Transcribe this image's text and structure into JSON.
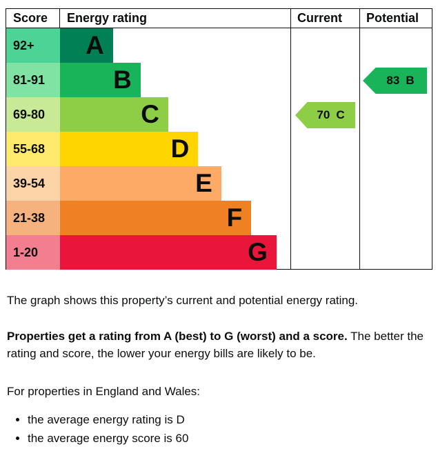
{
  "chart": {
    "headers": {
      "score": "Score",
      "rating": "Energy rating",
      "current": "Current",
      "potential": "Potential"
    },
    "bands": [
      {
        "range": "92+",
        "letter": "A",
        "color": "#008054",
        "tint": "#4dd396",
        "width": "23%"
      },
      {
        "range": "81-91",
        "letter": "B",
        "color": "#19b459",
        "tint": "#80e3a4",
        "width": "35%"
      },
      {
        "range": "69-80",
        "letter": "C",
        "color": "#8dce46",
        "tint": "#c8e995",
        "width": "47%"
      },
      {
        "range": "55-68",
        "letter": "D",
        "color": "#ffd500",
        "tint": "#ffea6e",
        "width": "60%"
      },
      {
        "range": "39-54",
        "letter": "E",
        "color": "#fcaa65",
        "tint": "#fdd4a7",
        "width": "70%"
      },
      {
        "range": "21-38",
        "letter": "F",
        "color": "#ef8023",
        "tint": "#f6b27e",
        "width": "83%"
      },
      {
        "range": "1-20",
        "letter": "G",
        "color": "#e9153b",
        "tint": "#f27e90",
        "width": "94%"
      }
    ],
    "current": {
      "value": "70",
      "letter": "C",
      "color": "#8dce46",
      "row_index": 2
    },
    "potential": {
      "value": "83",
      "letter": "B",
      "color": "#19b459",
      "row_index": 1
    }
  },
  "chart_data": {
    "type": "bar",
    "title": "Energy rating",
    "orientation": "horizontal",
    "categories": [
      "A",
      "B",
      "C",
      "D",
      "E",
      "F",
      "G"
    ],
    "score_ranges": [
      "92+",
      "81-91",
      "69-80",
      "55-68",
      "39-54",
      "21-38",
      "1-20"
    ],
    "bar_lengths_pct": [
      23,
      35,
      47,
      60,
      70,
      83,
      94
    ],
    "band_colors": [
      "#008054",
      "#19b459",
      "#8dce46",
      "#ffd500",
      "#fcaa65",
      "#ef8023",
      "#e9153b"
    ],
    "columns": [
      "Score",
      "Energy rating",
      "Current",
      "Potential"
    ],
    "markers": [
      {
        "column": "Current",
        "score": 70,
        "band": "C"
      },
      {
        "column": "Potential",
        "score": 83,
        "band": "B"
      }
    ]
  },
  "body": {
    "p1": "The graph shows this property’s current and potential energy rating.",
    "p2_bold": "Properties get a rating from A (best) to G (worst) and a score.",
    "p2_rest": "The better the rating and score, the lower your energy bills are likely to be.",
    "p3": "For properties in England and Wales:",
    "bullets": [
      "the average energy rating is D",
      "the average energy score is 60"
    ]
  }
}
